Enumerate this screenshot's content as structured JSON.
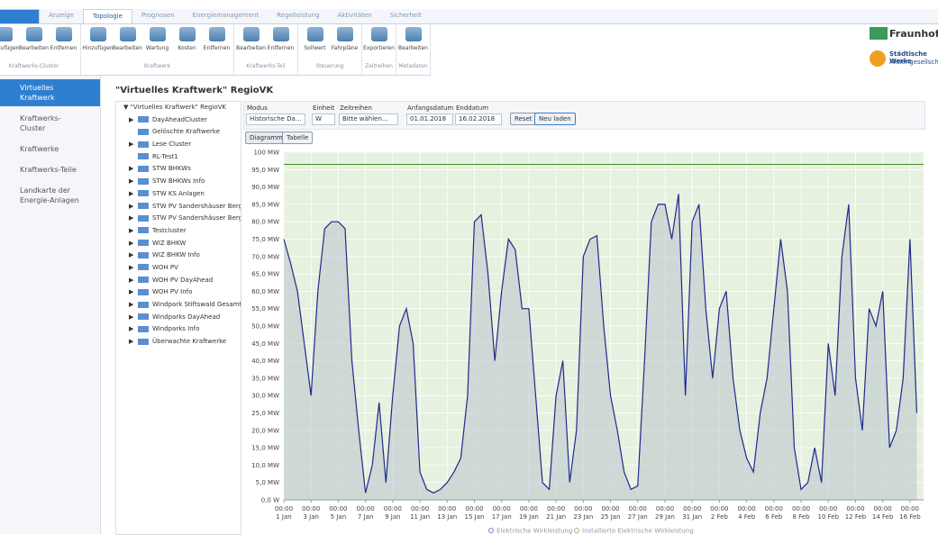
{
  "tabs": [
    "Anzeige",
    "Topologie",
    "Prognosen",
    "Energiemanagement",
    "Regelleistung",
    "Aktivitäten",
    "Sicherheit"
  ],
  "ribbon": [
    {
      "group": "Kraftwerks-Cluster",
      "buttons": [
        "Hinzufügen",
        "Bearbeiten",
        "Entfernen"
      ]
    },
    {
      "group": "Kraftwerk",
      "buttons": [
        "Hinzufügen",
        "Bearbeiten",
        "Wartung",
        "Kosten",
        "Entfernen"
      ]
    },
    {
      "group": "Kraftwerks-Teil",
      "buttons": [
        "Bearbeiten",
        "Entfernen"
      ]
    },
    {
      "group": "Steuerung",
      "buttons": [
        "Sollwert",
        "Fahrpläne"
      ]
    },
    {
      "group": "Zeitreihen",
      "buttons": [
        "Exportieren"
      ]
    },
    {
      "group": "Metadaten",
      "buttons": [
        "Bearbeiten"
      ]
    }
  ],
  "logos": {
    "fraunhofer": "Fraunhofer",
    "stw": "Städtische Werke",
    "stw_sub": "Aktiengesellschaft"
  },
  "nav": [
    "Virtuelles Kraftwerk",
    "Kraftwerks-Cluster",
    "Kraftwerke",
    "Kraftwerks-Teile",
    "Landkarte der Energie-Anlagen"
  ],
  "page_title": "\"Virtuelles Kraftwerk\" RegioVK",
  "tree": {
    "root": "\"Virtuelles Kraftwerk\" RegioVK",
    "items": [
      {
        "label": "DayAheadCluster",
        "expandable": true
      },
      {
        "label": "Gelöschte Kraftwerke",
        "expandable": false
      },
      {
        "label": "Lese Cluster",
        "expandable": true
      },
      {
        "label": "RL-Test1",
        "expandable": false
      },
      {
        "label": "STW BHKWs",
        "expandable": true
      },
      {
        "label": "STW BHKWs Info",
        "expandable": true
      },
      {
        "label": "STW KS Anlagen",
        "expandable": true
      },
      {
        "label": "STW PV Sandershäuser Berg",
        "expandable": true
      },
      {
        "label": "STW PV Sandershäuser Berg I...",
        "expandable": true
      },
      {
        "label": "Testcluster",
        "expandable": true
      },
      {
        "label": "WIZ BHKW",
        "expandable": true
      },
      {
        "label": "WIZ BHKW Info",
        "expandable": true
      },
      {
        "label": "WOH PV",
        "expandable": true
      },
      {
        "label": "WOH PV DayAhead",
        "expandable": true
      },
      {
        "label": "WOH PV Info",
        "expandable": true
      },
      {
        "label": "Windpark Stiftswald Gesamt",
        "expandable": true
      },
      {
        "label": "Windparks DayAhead",
        "expandable": true
      },
      {
        "label": "Windparks Info",
        "expandable": true
      },
      {
        "label": "Überwachte Kraftwerke",
        "expandable": true
      }
    ]
  },
  "toolbar": {
    "modus_label": "Modus",
    "modus": "Historische Da...",
    "einheit_label": "Einheit",
    "einheit": "W",
    "zeitreihen_label": "Zeitreihen",
    "zeitreihen": "Bitte wählen...",
    "start_label": "Anfangsdatum",
    "start": "01.01.2018",
    "end_label": "Enddatum",
    "end": "16.02.2018",
    "reset": "Reset",
    "reload": "Neu laden",
    "view_tabs": [
      "Diagramm",
      "Tabelle"
    ]
  },
  "chart_data": {
    "type": "line",
    "x": [
      "2018-01-01T00:00",
      "2018-01-01T12:00",
      "2018-01-02T00:00",
      "2018-01-02T12:00",
      "2018-01-03T00:00",
      "2018-01-03T12:00",
      "2018-01-04T00:00",
      "2018-01-04T12:00",
      "2018-01-05T00:00",
      "2018-01-05T12:00",
      "2018-01-06T00:00",
      "2018-01-06T12:00",
      "2018-01-07T00:00",
      "2018-01-07T12:00",
      "2018-01-08T00:00",
      "2018-01-08T12:00",
      "2018-01-09T00:00",
      "2018-01-09T12:00",
      "2018-01-10T00:00",
      "2018-01-10T12:00",
      "2018-01-11T00:00",
      "2018-01-11T12:00",
      "2018-01-12T00:00",
      "2018-01-12T12:00",
      "2018-01-13T00:00",
      "2018-01-13T12:00",
      "2018-01-14T00:00",
      "2018-01-14T12:00",
      "2018-01-15T00:00",
      "2018-01-15T12:00",
      "2018-01-16T00:00",
      "2018-01-16T12:00",
      "2018-01-17T00:00",
      "2018-01-17T12:00",
      "2018-01-18T00:00",
      "2018-01-18T12:00",
      "2018-01-19T00:00",
      "2018-01-19T12:00",
      "2018-01-20T00:00",
      "2018-01-20T12:00",
      "2018-01-21T00:00",
      "2018-01-21T12:00",
      "2018-01-22T00:00",
      "2018-01-22T12:00",
      "2018-01-23T00:00",
      "2018-01-23T12:00",
      "2018-01-24T00:00",
      "2018-01-24T12:00",
      "2018-01-25T00:00",
      "2018-01-25T12:00",
      "2018-01-26T00:00",
      "2018-01-26T12:00",
      "2018-01-27T00:00",
      "2018-01-27T12:00",
      "2018-01-28T00:00",
      "2018-01-28T12:00",
      "2018-01-29T00:00",
      "2018-01-29T12:00",
      "2018-01-30T00:00",
      "2018-01-30T12:00",
      "2018-01-31T00:00",
      "2018-01-31T12:00",
      "2018-02-01T00:00",
      "2018-02-01T12:00",
      "2018-02-02T00:00",
      "2018-02-02T12:00",
      "2018-02-03T00:00",
      "2018-02-03T12:00",
      "2018-02-04T00:00",
      "2018-02-04T12:00",
      "2018-02-05T00:00",
      "2018-02-05T12:00",
      "2018-02-06T00:00",
      "2018-02-06T12:00",
      "2018-02-07T00:00",
      "2018-02-07T12:00",
      "2018-02-08T00:00",
      "2018-02-08T12:00",
      "2018-02-09T00:00",
      "2018-02-09T12:00",
      "2018-02-10T00:00",
      "2018-02-10T12:00",
      "2018-02-11T00:00",
      "2018-02-11T12:00",
      "2018-02-12T00:00",
      "2018-02-12T12:00",
      "2018-02-13T00:00",
      "2018-02-13T12:00",
      "2018-02-14T00:00",
      "2018-02-14T12:00",
      "2018-02-15T00:00",
      "2018-02-15T12:00",
      "2018-02-16T00:00",
      "2018-02-16T12:00"
    ],
    "series": [
      {
        "name": "Elektrische Wirkleistung",
        "color": "#1f2a8c",
        "values": [
          75,
          68,
          60,
          45,
          30,
          60,
          78,
          80,
          80,
          78,
          40,
          20,
          2,
          10,
          28,
          5,
          30,
          50,
          55,
          45,
          8,
          3,
          2,
          3,
          5,
          8,
          12,
          30,
          80,
          82,
          65,
          40,
          60,
          75,
          72,
          55,
          55,
          30,
          5,
          3,
          30,
          40,
          5,
          20,
          70,
          75,
          76,
          50,
          30,
          20,
          8,
          3,
          4,
          40,
          80,
          85,
          85,
          75,
          88,
          30,
          80,
          85,
          55,
          35,
          55,
          60,
          35,
          20,
          12,
          8,
          25,
          35,
          55,
          75,
          60,
          15,
          3,
          5,
          15,
          5,
          45,
          30,
          70,
          85,
          35,
          20,
          55,
          50,
          60,
          15,
          20,
          35,
          75,
          25
        ]
      },
      {
        "name": "Installierte Elektrische Wirkleistung",
        "color": "#4a8a2a",
        "x": [
          "2018-01-01T00:00",
          "2018-02-17T00:00"
        ],
        "values": [
          96.5,
          96.5
        ]
      }
    ],
    "xlim": [
      "2018-01-01T00:00",
      "2018-02-17T00:00"
    ],
    "xticks": [
      {
        "value": "2018-01-01T00:00",
        "label": "00:00\n1 Jan"
      },
      {
        "value": "2018-01-03T00:00",
        "label": "00:00\n3 Jan"
      },
      {
        "value": "2018-01-05T00:00",
        "label": "00:00\n5 Jan"
      },
      {
        "value": "2018-01-07T00:00",
        "label": "00:00\n7 Jan"
      },
      {
        "value": "2018-01-09T00:00",
        "label": "00:00\n9 Jan"
      },
      {
        "value": "2018-01-11T00:00",
        "label": "00:00\n11 Jan"
      },
      {
        "value": "2018-01-13T00:00",
        "label": "00:00\n13 Jan"
      },
      {
        "value": "2018-01-15T00:00",
        "label": "00:00\n15 Jan"
      },
      {
        "value": "2018-01-17T00:00",
        "label": "00:00\n17 Jan"
      },
      {
        "value": "2018-01-19T00:00",
        "label": "00:00\n19 Jan"
      },
      {
        "value": "2018-01-21T00:00",
        "label": "00:00\n21 Jan"
      },
      {
        "value": "2018-01-23T00:00",
        "label": "00:00\n23 Jan"
      },
      {
        "value": "2018-01-25T00:00",
        "label": "00:00\n25 Jan"
      },
      {
        "value": "2018-01-27T00:00",
        "label": "00:00\n27 Jan"
      },
      {
        "value": "2018-01-29T00:00",
        "label": "00:00\n29 Jan"
      },
      {
        "value": "2018-01-31T00:00",
        "label": "00:00\n31 Jan"
      },
      {
        "value": "2018-02-02T00:00",
        "label": "00:00\n2 Feb"
      },
      {
        "value": "2018-02-04T00:00",
        "label": "00:00\n4 Feb"
      },
      {
        "value": "2018-02-06T00:00",
        "label": "00:00\n6 Feb"
      },
      {
        "value": "2018-02-08T00:00",
        "label": "00:00\n8 Feb"
      },
      {
        "value": "2018-02-10T00:00",
        "label": "00:00\n10 Feb"
      },
      {
        "value": "2018-02-12T00:00",
        "label": "00:00\n12 Feb"
      },
      {
        "value": "2018-02-14T00:00",
        "label": "00:00\n14 Feb"
      },
      {
        "value": "2018-02-16T00:00",
        "label": "00:00\n16 Feb"
      }
    ],
    "ylim": [
      0,
      100
    ],
    "yticks": [
      {
        "value": 0,
        "label": "0,0 W"
      },
      {
        "value": 5,
        "label": "5,0 MW"
      },
      {
        "value": 10,
        "label": "10,0 MW"
      },
      {
        "value": 15,
        "label": "15,0 MW"
      },
      {
        "value": 20,
        "label": "20,0 MW"
      },
      {
        "value": 25,
        "label": "25,0 MW"
      },
      {
        "value": 30,
        "label": "30,0 MW"
      },
      {
        "value": 35,
        "label": "35,0 MW"
      },
      {
        "value": 40,
        "label": "40,0 MW"
      },
      {
        "value": 45,
        "label": "45,0 MW"
      },
      {
        "value": 50,
        "label": "50,0 MW"
      },
      {
        "value": 55,
        "label": "55,0 MW"
      },
      {
        "value": 60,
        "label": "60,0 MW"
      },
      {
        "value": 65,
        "label": "65,0 MW"
      },
      {
        "value": 70,
        "label": "70,0 MW"
      },
      {
        "value": 75,
        "label": "75,0 MW"
      },
      {
        "value": 80,
        "label": "80,0 MW"
      },
      {
        "value": 85,
        "label": "85,0 MW"
      },
      {
        "value": 90,
        "label": "90,0 MW"
      },
      {
        "value": 95,
        "label": "95,0 MW"
      },
      {
        "value": 100,
        "label": "100 MW"
      }
    ],
    "grid": true
  }
}
